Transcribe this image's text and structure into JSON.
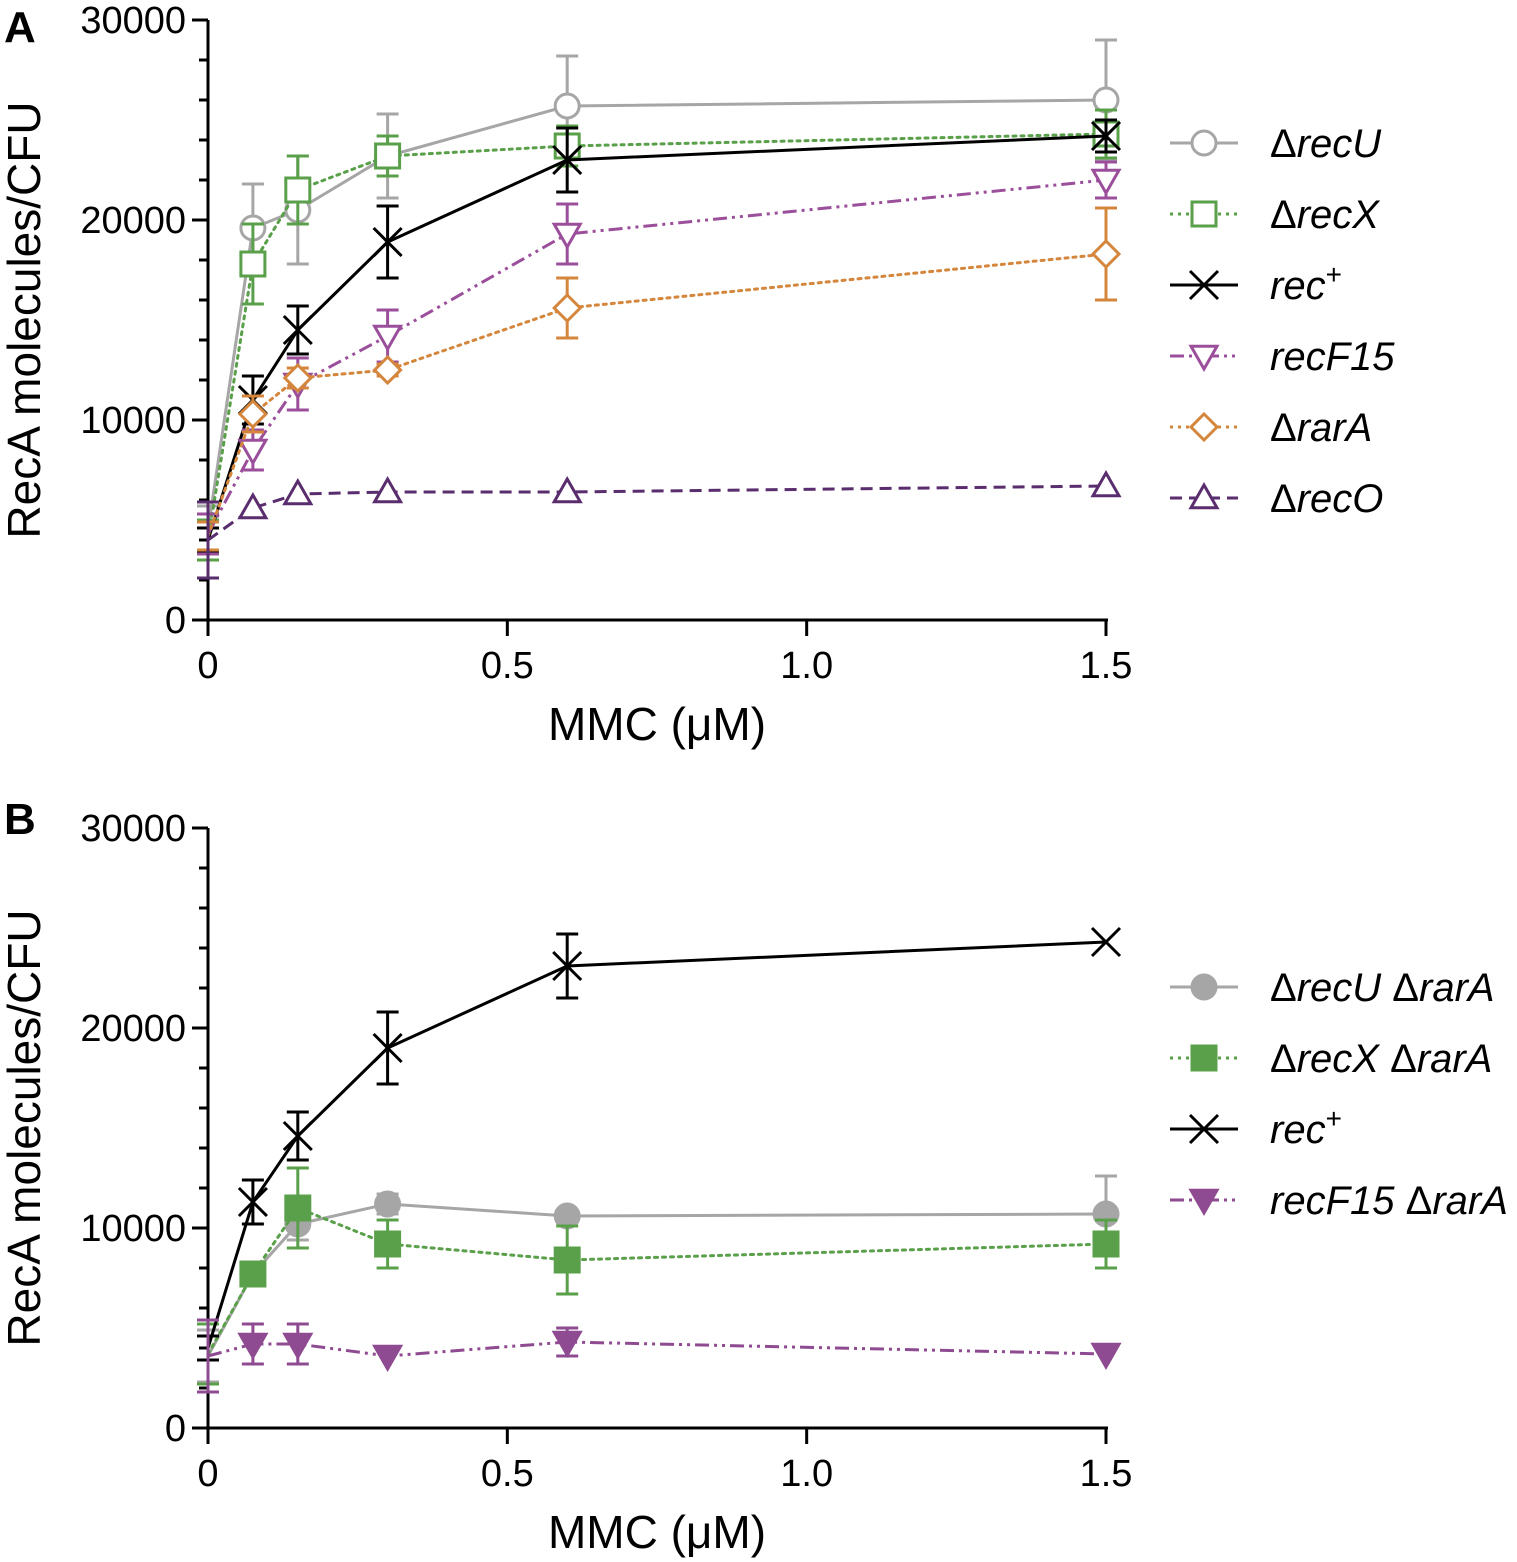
{
  "chart_data": [
    {
      "panel": "A",
      "type": "line",
      "xlabel": "MMC (μM)",
      "ylabel": "RecA molecules/CFU",
      "xlim": [
        0,
        1.5
      ],
      "ylim": [
        0,
        30000
      ],
      "xticks": [
        0,
        0.5,
        1.0,
        1.5
      ],
      "xtick_labels": [
        "0",
        "0.5",
        "1.0",
        "1.5"
      ],
      "yticks": [
        0,
        10000,
        20000,
        30000
      ],
      "ytick_labels": [
        "0",
        "10000",
        "20000",
        "30000"
      ],
      "y_minor_step": 2000,
      "legend_position": "right",
      "x": [
        0,
        0.075,
        0.15,
        0.3,
        0.6,
        1.5
      ],
      "series": [
        {
          "name": "ΔrecU",
          "legend_prefix": "Δ",
          "legend_italic": "recU",
          "legend_sup": "",
          "legend_suffix": "",
          "color": "#a6a6a6",
          "marker": "circle",
          "filled": false,
          "dash": "solid",
          "values": [
            4500,
            19600,
            20500,
            23200,
            25700,
            26000
          ],
          "errors": [
            1200,
            2200,
            2700,
            2100,
            2500,
            3000
          ]
        },
        {
          "name": "ΔrecX",
          "legend_prefix": "Δ",
          "legend_italic": "recX",
          "legend_sup": "",
          "legend_suffix": "",
          "color": "#5aa04a",
          "marker": "square",
          "filled": false,
          "dash": "dotted",
          "values": [
            4000,
            17800,
            21500,
            23200,
            23700,
            24300
          ],
          "errors": [
            1000,
            2000,
            1700,
            1000,
            1000,
            1200
          ]
        },
        {
          "name": "rec+",
          "legend_prefix": "",
          "legend_italic": "rec",
          "legend_sup": "+",
          "legend_suffix": "",
          "color": "#000000",
          "marker": "x",
          "filled": false,
          "dash": "solid",
          "values": [
            4000,
            11000,
            14500,
            18900,
            23000,
            24200
          ],
          "errors": [
            600,
            1200,
            1200,
            1800,
            1600,
            800
          ]
        },
        {
          "name": "recF15",
          "legend_prefix": "",
          "legend_italic": "recF15",
          "legend_sup": "",
          "legend_suffix": "",
          "color": "#9b4f9b",
          "marker": "triangle-down",
          "filled": false,
          "dash": "dashdotdot",
          "values": [
            4300,
            8500,
            11800,
            14200,
            19300,
            22000
          ],
          "errors": [
            1000,
            1000,
            1300,
            1300,
            1500,
            900
          ]
        },
        {
          "name": "ΔrarA",
          "legend_prefix": "Δ",
          "legend_italic": "rarA",
          "legend_sup": "",
          "legend_suffix": "",
          "color": "#d4863c",
          "marker": "diamond",
          "filled": false,
          "dash": "dotted",
          "values": [
            4200,
            10300,
            12100,
            12500,
            15600,
            18300
          ],
          "errors": [
            700,
            900,
            500,
            300,
            1500,
            2300
          ]
        },
        {
          "name": "ΔrecO",
          "legend_prefix": "Δ",
          "legend_italic": "recO",
          "legend_sup": "",
          "legend_suffix": "",
          "color": "#5a2d6e",
          "marker": "triangle-up",
          "filled": false,
          "dash": "dashed",
          "values": [
            4000,
            5600,
            6300,
            6400,
            6400,
            6700
          ],
          "errors": [
            1900,
            0,
            0,
            0,
            0,
            0
          ]
        }
      ]
    },
    {
      "panel": "B",
      "type": "line",
      "xlabel": "MMC (μM)",
      "ylabel": "RecA molecules/CFU",
      "xlim": [
        0,
        1.5
      ],
      "ylim": [
        0,
        30000
      ],
      "xticks": [
        0,
        0.5,
        1.0,
        1.5
      ],
      "xtick_labels": [
        "0",
        "0.5",
        "1.0",
        "1.5"
      ],
      "yticks": [
        0,
        10000,
        20000,
        30000
      ],
      "ytick_labels": [
        "0",
        "10000",
        "20000",
        "30000"
      ],
      "y_minor_step": 2000,
      "legend_position": "right",
      "x": [
        0,
        0.075,
        0.15,
        0.3,
        0.6,
        1.5
      ],
      "series": [
        {
          "name": "ΔrecU ΔrarA",
          "legend_prefix": "Δ",
          "legend_italic": "recU",
          "legend_sup": "",
          "legend_suffix": " Δ",
          "legend_italic2": "rarA",
          "color": "#a6a6a6",
          "marker": "circle",
          "filled": true,
          "dash": "solid",
          "values": [
            3600,
            7700,
            10200,
            11200,
            10600,
            10700
          ],
          "errors": [
            1300,
            0,
            800,
            500,
            300,
            1900
          ]
        },
        {
          "name": "ΔrecX ΔrarA",
          "legend_prefix": "Δ",
          "legend_italic": "recX",
          "legend_sup": "",
          "legend_suffix": " Δ",
          "legend_italic2": "rarA",
          "color": "#5aa04a",
          "marker": "square",
          "filled": true,
          "dash": "dotted",
          "values": [
            3700,
            7700,
            11000,
            9200,
            8400,
            9200
          ],
          "errors": [
            1500,
            600,
            2000,
            1200,
            1700,
            1200
          ]
        },
        {
          "name": "rec+",
          "legend_prefix": "",
          "legend_italic": "rec",
          "legend_sup": "+",
          "legend_suffix": "",
          "legend_italic2": "",
          "color": "#000000",
          "marker": "x",
          "filled": false,
          "dash": "solid",
          "values": [
            4000,
            11300,
            14600,
            19000,
            23100,
            24300
          ],
          "errors": [
            600,
            1100,
            1200,
            1800,
            1600,
            0
          ]
        },
        {
          "name": "recF15 ΔrarA",
          "legend_prefix": "",
          "legend_italic": "recF15",
          "legend_sup": "",
          "legend_suffix": " Δ",
          "legend_italic2": "rarA",
          "color": "#8f4b91",
          "marker": "triangle-down",
          "filled": true,
          "dash": "dashdotdot",
          "values": [
            3600,
            4200,
            4200,
            3600,
            4300,
            3700
          ],
          "errors": [
            1800,
            1000,
            1000,
            0,
            700,
            0
          ]
        }
      ]
    }
  ]
}
